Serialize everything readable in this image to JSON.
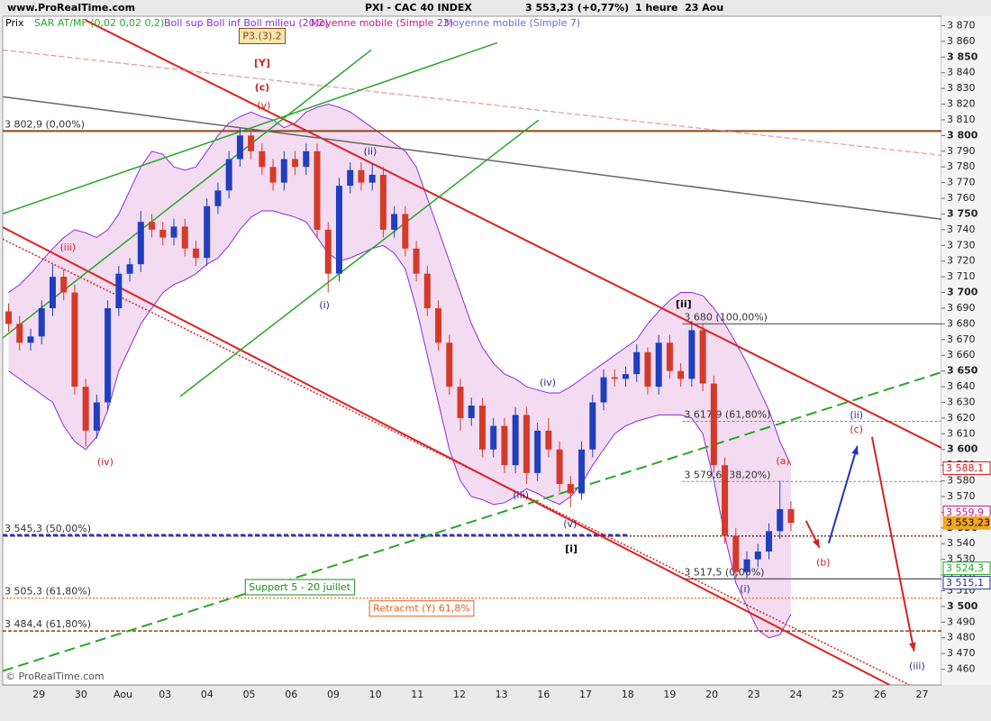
{
  "chart_data": {
    "type": "candlestick",
    "header": {
      "site": "www.ProRealTime.com",
      "instrument": "PXI - CAC 40 INDEX",
      "quote": "3 553,23 (+0,77%)",
      "period": "1 heure  23 Aou"
    },
    "legend": [
      {
        "name": "Prix",
        "color": "#000000"
      },
      {
        "name": "SAR AT/MF (0,02 0,02 0,2)",
        "color": "#22aa22"
      },
      {
        "name": "Boll sup Boll inf Boll milieu (20,2)",
        "color": "#8a2be2"
      },
      {
        "name": "Moyenne mobile (Simple 23)",
        "color": "#c0158a"
      },
      {
        "name": "Moyenne mobile (Simple 7)",
        "color": "#6a6ad0"
      }
    ],
    "footer": "© ProRealTime.com",
    "categories": [
      "29",
      "30",
      "Aou",
      "03",
      "04",
      "05",
      "06",
      "09",
      "10",
      "11",
      "12",
      "13",
      "16",
      "17",
      "18",
      "19",
      "20",
      "23",
      "24",
      "25",
      "26",
      "27"
    ],
    "xlim": [
      -0.86,
      21.46
    ],
    "ylim": [
      3450,
      3876
    ],
    "grid": false,
    "up_color": "#1f3fbf",
    "down_color": "#d43a2a",
    "candles": {
      "open": [
        3688,
        3680,
        3668,
        3672,
        3690,
        3710,
        3700,
        3640,
        3612,
        3630,
        3690,
        3712,
        3718,
        3745,
        3740,
        3735,
        3742,
        3728,
        3722,
        3755,
        3765,
        3785,
        3800,
        3790,
        3780,
        3770,
        3785,
        3780,
        3790,
        3740,
        3712,
        3768,
        3778,
        3770,
        3775,
        3740,
        3750,
        3728,
        3712,
        3690,
        3668,
        3640,
        3620,
        3628,
        3600,
        3615,
        3590,
        3622,
        3585,
        3612,
        3600,
        3578,
        3572,
        3600,
        3630,
        3646,
        3645,
        3648,
        3662,
        3640,
        3668,
        3650,
        3645,
        3676,
        3642,
        3590,
        3545,
        3522,
        3530,
        3535,
        3548,
        3562
      ],
      "high": [
        3693,
        3685,
        3677,
        3695,
        3718,
        3715,
        3705,
        3645,
        3635,
        3695,
        3717,
        3722,
        3752,
        3750,
        3745,
        3747,
        3747,
        3733,
        3760,
        3770,
        3790,
        3805,
        3803,
        3795,
        3785,
        3790,
        3790,
        3795,
        3795,
        3745,
        3773,
        3783,
        3783,
        3782,
        3780,
        3755,
        3755,
        3733,
        3717,
        3695,
        3673,
        3645,
        3633,
        3633,
        3620,
        3620,
        3627,
        3627,
        3617,
        3620,
        3605,
        3583,
        3605,
        3635,
        3651,
        3651,
        3653,
        3667,
        3665,
        3673,
        3673,
        3655,
        3682,
        3680,
        3647,
        3595,
        3550,
        3535,
        3540,
        3553,
        3580,
        3567
      ],
      "low": [
        3675,
        3663,
        3663,
        3667,
        3685,
        3695,
        3635,
        3602,
        3607,
        3625,
        3685,
        3707,
        3713,
        3735,
        3730,
        3730,
        3723,
        3717,
        3717,
        3750,
        3760,
        3780,
        3785,
        3775,
        3765,
        3765,
        3775,
        3775,
        3735,
        3700,
        3707,
        3763,
        3765,
        3765,
        3735,
        3735,
        3723,
        3707,
        3685,
        3663,
        3635,
        3612,
        3615,
        3595,
        3595,
        3585,
        3585,
        3578,
        3580,
        3595,
        3573,
        3563,
        3568,
        3595,
        3625,
        3640,
        3640,
        3643,
        3635,
        3635,
        3645,
        3640,
        3640,
        3637,
        3585,
        3540,
        3517.5,
        3518,
        3525,
        3530,
        3543,
        3548
      ],
      "close": [
        3680,
        3668,
        3672,
        3690,
        3710,
        3700,
        3640,
        3612,
        3630,
        3690,
        3712,
        3718,
        3745,
        3740,
        3735,
        3742,
        3728,
        3722,
        3755,
        3765,
        3785,
        3800,
        3790,
        3780,
        3770,
        3785,
        3780,
        3790,
        3740,
        3712,
        3768,
        3778,
        3770,
        3775,
        3740,
        3750,
        3728,
        3712,
        3690,
        3668,
        3640,
        3620,
        3628,
        3600,
        3615,
        3590,
        3622,
        3585,
        3612,
        3600,
        3578,
        3572,
        3600,
        3630,
        3646,
        3645,
        3648,
        3662,
        3640,
        3668,
        3650,
        3645,
        3676,
        3642,
        3590,
        3545,
        3522,
        3530,
        3535,
        3548,
        3562,
        3553.23
      ]
    },
    "bands": {
      "color": "#8a2be2",
      "fill": "#f3dcf1",
      "upper": [
        3700,
        3705,
        3712,
        3720,
        3728,
        3735,
        3740,
        3738,
        3735,
        3740,
        3750,
        3765,
        3780,
        3790,
        3788,
        3780,
        3778,
        3780,
        3790,
        3800,
        3808,
        3812,
        3815,
        3812,
        3810,
        3805,
        3808,
        3815,
        3818,
        3820,
        3818,
        3815,
        3810,
        3805,
        3800,
        3795,
        3790,
        3780,
        3760,
        3740,
        3720,
        3700,
        3680,
        3665,
        3655,
        3648,
        3645,
        3640,
        3638,
        3636,
        3636,
        3640,
        3645,
        3650,
        3655,
        3660,
        3665,
        3670,
        3680,
        3688,
        3695,
        3700,
        3700,
        3698,
        3690,
        3680,
        3668,
        3655,
        3640,
        3625,
        3605,
        3590
      ],
      "lower": [
        3650,
        3645,
        3640,
        3635,
        3630,
        3615,
        3605,
        3600,
        3608,
        3625,
        3650,
        3665,
        3680,
        3690,
        3700,
        3705,
        3708,
        3712,
        3718,
        3722,
        3730,
        3740,
        3748,
        3752,
        3752,
        3750,
        3748,
        3745,
        3735,
        3725,
        3720,
        3722,
        3725,
        3728,
        3730,
        3725,
        3715,
        3690,
        3660,
        3630,
        3600,
        3580,
        3570,
        3568,
        3565,
        3566,
        3570,
        3575,
        3572,
        3568,
        3565,
        3570,
        3578,
        3590,
        3600,
        3610,
        3615,
        3618,
        3620,
        3622,
        3622,
        3622,
        3620,
        3610,
        3580,
        3545,
        3515,
        3500,
        3485,
        3480,
        3482,
        3495
      ]
    },
    "yticks": [
      {
        "value": 3460,
        "label": "3 460"
      },
      {
        "value": 3470,
        "label": "3 470"
      },
      {
        "value": 3480,
        "label": "3 480"
      },
      {
        "value": 3490,
        "label": "3 490"
      },
      {
        "value": 3500,
        "label": "3 500"
      },
      {
        "value": 3510,
        "label": "3 510"
      },
      {
        "value": 3520,
        "label": "3 520"
      },
      {
        "value": 3530,
        "label": "3 530"
      },
      {
        "value": 3540,
        "label": "3 540"
      },
      {
        "value": 3550,
        "label": "3 550"
      },
      {
        "value": 3560,
        "label": "3 560"
      },
      {
        "value": 3570,
        "label": "3 570"
      },
      {
        "value": 3580,
        "label": "3 580"
      },
      {
        "value": 3590,
        "label": "3 590"
      },
      {
        "value": 3600,
        "label": "3 600"
      },
      {
        "value": 3610,
        "label": "3 610"
      },
      {
        "value": 3620,
        "label": "3 620"
      },
      {
        "value": 3630,
        "label": "3 630"
      },
      {
        "value": 3640,
        "label": "3 640"
      },
      {
        "value": 3650,
        "label": "3 650"
      },
      {
        "value": 3660,
        "label": "3 660"
      },
      {
        "value": 3670,
        "label": "3 670"
      },
      {
        "value": 3680,
        "label": "3 680"
      },
      {
        "value": 3690,
        "label": "3 690"
      },
      {
        "value": 3700,
        "label": "3 700"
      },
      {
        "value": 3710,
        "label": "3 710"
      },
      {
        "value": 3720,
        "label": "3 720"
      },
      {
        "value": 3730,
        "label": "3 730"
      },
      {
        "value": 3740,
        "label": "3 740"
      },
      {
        "value": 3750,
        "label": "3 750"
      },
      {
        "value": 3760,
        "label": "3 760"
      },
      {
        "value": 3770,
        "label": "3 770"
      },
      {
        "value": 3780,
        "label": "3 780"
      },
      {
        "value": 3790,
        "label": "3 790"
      },
      {
        "value": 3800,
        "label": "3 800"
      },
      {
        "value": 3810,
        "label": "3 810"
      },
      {
        "value": 3820,
        "label": "3 820"
      },
      {
        "value": 3830,
        "label": "3 830"
      },
      {
        "value": 3840,
        "label": "3 840"
      },
      {
        "value": 3850,
        "label": "3 850"
      },
      {
        "value": 3860,
        "label": "3 860"
      },
      {
        "value": 3870,
        "label": "3 870"
      }
    ],
    "lines": [
      {
        "color": "#e02020",
        "width": 2,
        "dash": "none",
        "points": [
          [
            1.11,
            3873.4
          ],
          [
            21.46,
            3601
          ]
        ]
      },
      {
        "color": "#e02020",
        "width": 2,
        "dash": "none",
        "points": [
          [
            -0.86,
            3741.6
          ],
          [
            21.46,
            3433
          ]
        ]
      },
      {
        "color": "#e02020",
        "width": 1.5,
        "dash": "2,2",
        "points": [
          [
            -0.86,
            3734
          ],
          [
            21.46,
            3440
          ]
        ]
      },
      {
        "color": "#e08080",
        "width": 1,
        "dash": "6,3",
        "points": [
          [
            -0.86,
            3854.5
          ],
          [
            21.46,
            3787.4
          ]
        ]
      },
      {
        "color": "#666666",
        "width": 1.5,
        "dash": "none",
        "points": [
          [
            -0.86,
            3824.7
          ],
          [
            21.46,
            3746.7
          ]
        ]
      },
      {
        "color": "#2aa52a",
        "width": 1.5,
        "dash": "none",
        "points": [
          [
            -0.86,
            3750.2
          ],
          [
            10.9,
            3859.1
          ]
        ]
      },
      {
        "color": "#2aa52a",
        "width": 1.5,
        "dash": "none",
        "points": [
          [
            -0.86,
            3671
          ],
          [
            7.9,
            3854.5
          ]
        ]
      },
      {
        "color": "#2aa52a",
        "width": 1.5,
        "dash": "none",
        "points": [
          [
            3.36,
            3633.8
          ],
          [
            11.88,
            3809.8
          ]
        ]
      },
      {
        "color": "#2aa52a",
        "width": 2,
        "dash": "12,6",
        "points": [
          [
            -0.86,
            3458.9
          ],
          [
            21.46,
            3649.2
          ]
        ]
      }
    ],
    "levels": [
      {
        "value": 3802.9,
        "label": "3 802,9 (0,00%)",
        "color": "#8b4513",
        "dash": "none",
        "width": 2
      },
      {
        "value": 3680,
        "label": "3 680 (100,00%)",
        "color": "#777777",
        "dash": "none",
        "width": 1.5,
        "x_start": 15.3
      },
      {
        "value": 3617.9,
        "label": "3 617,9 (61,80%)",
        "color": "#888888",
        "dash": "3,2",
        "width": 1,
        "x_start": 15.3
      },
      {
        "value": 3579.6,
        "label": "3 579,6 (38,20%)",
        "color": "#888888",
        "dash": "3,2",
        "width": 1,
        "x_start": 15.3
      },
      {
        "value": 3545.3,
        "label": "3 545,3 (50,00%)",
        "color": "#2233cc",
        "dash": "5,3",
        "width": 3,
        "x_end": 14.0
      },
      {
        "value": 3544.9,
        "color": "#7a3b10",
        "dash": "2,2",
        "width": 1.5
      },
      {
        "value": 3517.5,
        "label": "3 517,5 (0,00%)",
        "color": "#666666",
        "dash": "none",
        "width": 1.5,
        "x_start": 15.3
      },
      {
        "value": 3505.3,
        "label": "3 505,3 (61,80%)",
        "color": "#f08040",
        "dash": "2,2",
        "width": 1.5
      },
      {
        "value": 3484.4,
        "label": "3 484,4 (61,80%)",
        "color": "#8b4513",
        "dash": "4,2",
        "width": 1.5
      }
    ],
    "annotations": [
      {
        "text": "P3.(3).2",
        "x": 5.31,
        "y": 3863.1,
        "color": "#8b4513",
        "bold": false,
        "box": true
      },
      {
        "text": "[Y]",
        "x": 5.31,
        "y": 3845.9,
        "color": "#cc2222",
        "bold": true
      },
      {
        "text": "(c)",
        "x": 5.31,
        "y": 3830.4,
        "color": "#cc2222",
        "bold": true
      },
      {
        "text": "(v)",
        "x": 5.35,
        "y": 3819,
        "color": "#cc2222",
        "bold": false
      },
      {
        "text": "(iii)",
        "x": 0.69,
        "y": 3728.4,
        "color": "#cc2222",
        "bold": false
      },
      {
        "text": "(iv)",
        "x": 1.58,
        "y": 3591.9,
        "color": "#cc2222",
        "bold": false
      },
      {
        "text": "(i)",
        "x": 6.79,
        "y": 3691.7,
        "color": "#2a2a9a",
        "bold": false
      },
      {
        "text": "(ii)",
        "x": 7.88,
        "y": 3789.7,
        "color": "#2a2a9a",
        "bold": false
      },
      {
        "text": "(iii)",
        "x": 11.46,
        "y": 3570.7,
        "color": "#2a2a9a",
        "bold": false
      },
      {
        "text": "(iv)",
        "x": 12.1,
        "y": 3642.4,
        "color": "#2a2a9a",
        "bold": false
      },
      {
        "text": "(v)",
        "x": 12.63,
        "y": 3552.3,
        "color": "#2a2a9a",
        "bold": false
      },
      {
        "text": "[i]",
        "x": 12.66,
        "y": 3536.3,
        "color": "#000000",
        "bold": true
      },
      {
        "text": "[ii]",
        "x": 15.33,
        "y": 3692.2,
        "color": "#000000",
        "bold": true
      },
      {
        "text": "(a)",
        "x": 17.69,
        "y": 3592.5,
        "color": "#cc2222",
        "bold": false
      },
      {
        "text": "(b)",
        "x": 18.65,
        "y": 3527.7,
        "color": "#cc2222",
        "bold": false
      },
      {
        "text": "(ii)",
        "x": 19.44,
        "y": 3621.7,
        "color": "#2a2a9a",
        "bold": false
      },
      {
        "text": "(c)",
        "x": 19.44,
        "y": 3612.5,
        "color": "#cc2222",
        "bold": false
      },
      {
        "text": "(i)",
        "x": 16.79,
        "y": 3511,
        "color": "#2a2a9a",
        "bold": false
      },
      {
        "text": "(iii)",
        "x": 20.88,
        "y": 3461.7,
        "color": "#2a2a9a",
        "bold": false
      },
      {
        "text": "Support 5 - 20 juillet",
        "x": 6.2,
        "y": 3512,
        "color": "#1e8a1e",
        "bold": false,
        "box": true
      },
      {
        "text": "Retracmt (Y) 61,8%",
        "x": 9.1,
        "y": 3498.4,
        "color": "#e06020",
        "bold": false,
        "box": true
      }
    ],
    "arrows": [
      {
        "color": "#d22222",
        "points": [
          [
            18.24,
            3554.6
          ],
          [
            18.56,
            3537.4
          ]
        ]
      },
      {
        "color": "#2233bb",
        "points": [
          [
            18.78,
            3540.3
          ],
          [
            19.46,
            3602.2
          ]
        ]
      },
      {
        "color": "#d22222",
        "points": [
          [
            19.81,
            3608
          ],
          [
            20.81,
            3471.5
          ]
        ]
      }
    ],
    "price_tags": [
      {
        "value": 3588.1,
        "label": "3 588,1",
        "color": "#cc2222",
        "filled": false
      },
      {
        "value": 3559.9,
        "label": "3 559,9",
        "color": "#c0158a",
        "filled": false
      },
      {
        "value": 3553.23,
        "label": "3 553,23",
        "color": "#f5a623",
        "filled": true
      },
      {
        "value": 3524.3,
        "label": "3 524,3",
        "color": "#22aa22",
        "filled": false
      },
      {
        "value": 3515.1,
        "label": "3 515,1",
        "color": "#3030a0",
        "filled": false
      }
    ]
  }
}
